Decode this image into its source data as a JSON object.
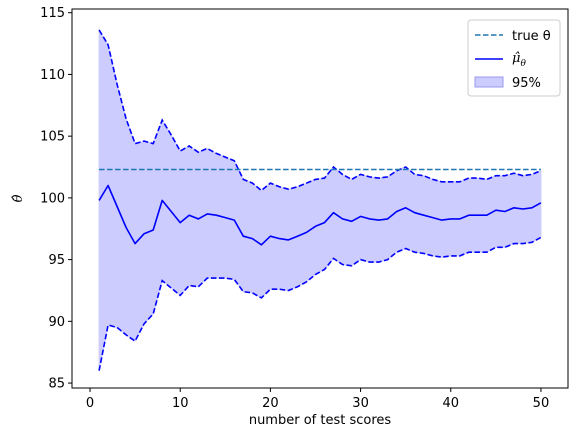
{
  "chart_data": {
    "type": "line",
    "title": "",
    "xlabel": "number of test scores",
    "ylabel": "θ̂",
    "xlim": [
      -2,
      53
    ],
    "ylim": [
      84.6,
      115.3
    ],
    "xticks": [
      0,
      10,
      20,
      30,
      40,
      50
    ],
    "yticks": [
      85,
      90,
      95,
      100,
      105,
      110,
      115
    ],
    "grid": false,
    "legend_placement": "top-right",
    "x": [
      1,
      2,
      3,
      4,
      5,
      6,
      7,
      8,
      9,
      10,
      11,
      12,
      13,
      14,
      15,
      16,
      17,
      18,
      19,
      20,
      21,
      22,
      23,
      24,
      25,
      26,
      27,
      28,
      29,
      30,
      31,
      32,
      33,
      34,
      35,
      36,
      37,
      38,
      39,
      40,
      41,
      42,
      43,
      44,
      45,
      46,
      47,
      48,
      49,
      50
    ],
    "true_theta": 102.3,
    "series": [
      {
        "name": "true θ",
        "role": "true",
        "color": "#1f77b4",
        "style": "dashed"
      },
      {
        "name": "μ̂_θ",
        "role": "mean",
        "color": "#0000ff",
        "style": "solid",
        "values": [
          99.8,
          101.0,
          99.3,
          97.6,
          96.3,
          97.1,
          97.4,
          99.8,
          98.9,
          98.0,
          98.6,
          98.3,
          98.7,
          98.6,
          98.4,
          98.2,
          96.9,
          96.7,
          96.2,
          96.9,
          96.7,
          96.6,
          96.9,
          97.2,
          97.7,
          98.0,
          98.8,
          98.3,
          98.1,
          98.5,
          98.3,
          98.2,
          98.3,
          98.9,
          99.2,
          98.8,
          98.6,
          98.4,
          98.2,
          98.3,
          98.3,
          98.6,
          98.6,
          98.6,
          99.0,
          98.9,
          99.2,
          99.1,
          99.2,
          99.6
        ]
      },
      {
        "name": "95%",
        "role": "interval",
        "color": "#0000ff",
        "fill": "#ccccff",
        "upper": [
          113.6,
          112.4,
          109.2,
          106.4,
          104.4,
          104.6,
          104.4,
          106.3,
          105.1,
          103.8,
          104.2,
          103.7,
          104.0,
          103.6,
          103.3,
          103.0,
          101.5,
          101.2,
          100.6,
          101.2,
          100.9,
          100.7,
          100.9,
          101.2,
          101.5,
          101.6,
          102.5,
          101.9,
          101.5,
          101.9,
          101.7,
          101.6,
          101.7,
          102.2,
          102.5,
          101.9,
          101.8,
          101.5,
          101.3,
          101.3,
          101.3,
          101.6,
          101.6,
          101.5,
          101.8,
          101.8,
          102.0,
          101.8,
          101.9,
          102.2
        ],
        "lower": [
          86.0,
          89.7,
          89.5,
          88.9,
          88.4,
          89.8,
          90.6,
          93.3,
          92.7,
          92.1,
          92.9,
          92.8,
          93.5,
          93.5,
          93.5,
          93.4,
          92.4,
          92.3,
          91.9,
          92.6,
          92.6,
          92.5,
          92.8,
          93.2,
          93.8,
          94.2,
          95.1,
          94.6,
          94.5,
          95.0,
          94.8,
          94.8,
          95.0,
          95.6,
          95.9,
          95.6,
          95.5,
          95.3,
          95.2,
          95.3,
          95.3,
          95.6,
          95.6,
          95.6,
          96.0,
          96.0,
          96.3,
          96.3,
          96.4,
          96.8
        ]
      }
    ]
  },
  "legend": {
    "true_label": "true θ",
    "mean_label": "μ̂",
    "mean_subscript": "θ",
    "band_label": "95%"
  }
}
